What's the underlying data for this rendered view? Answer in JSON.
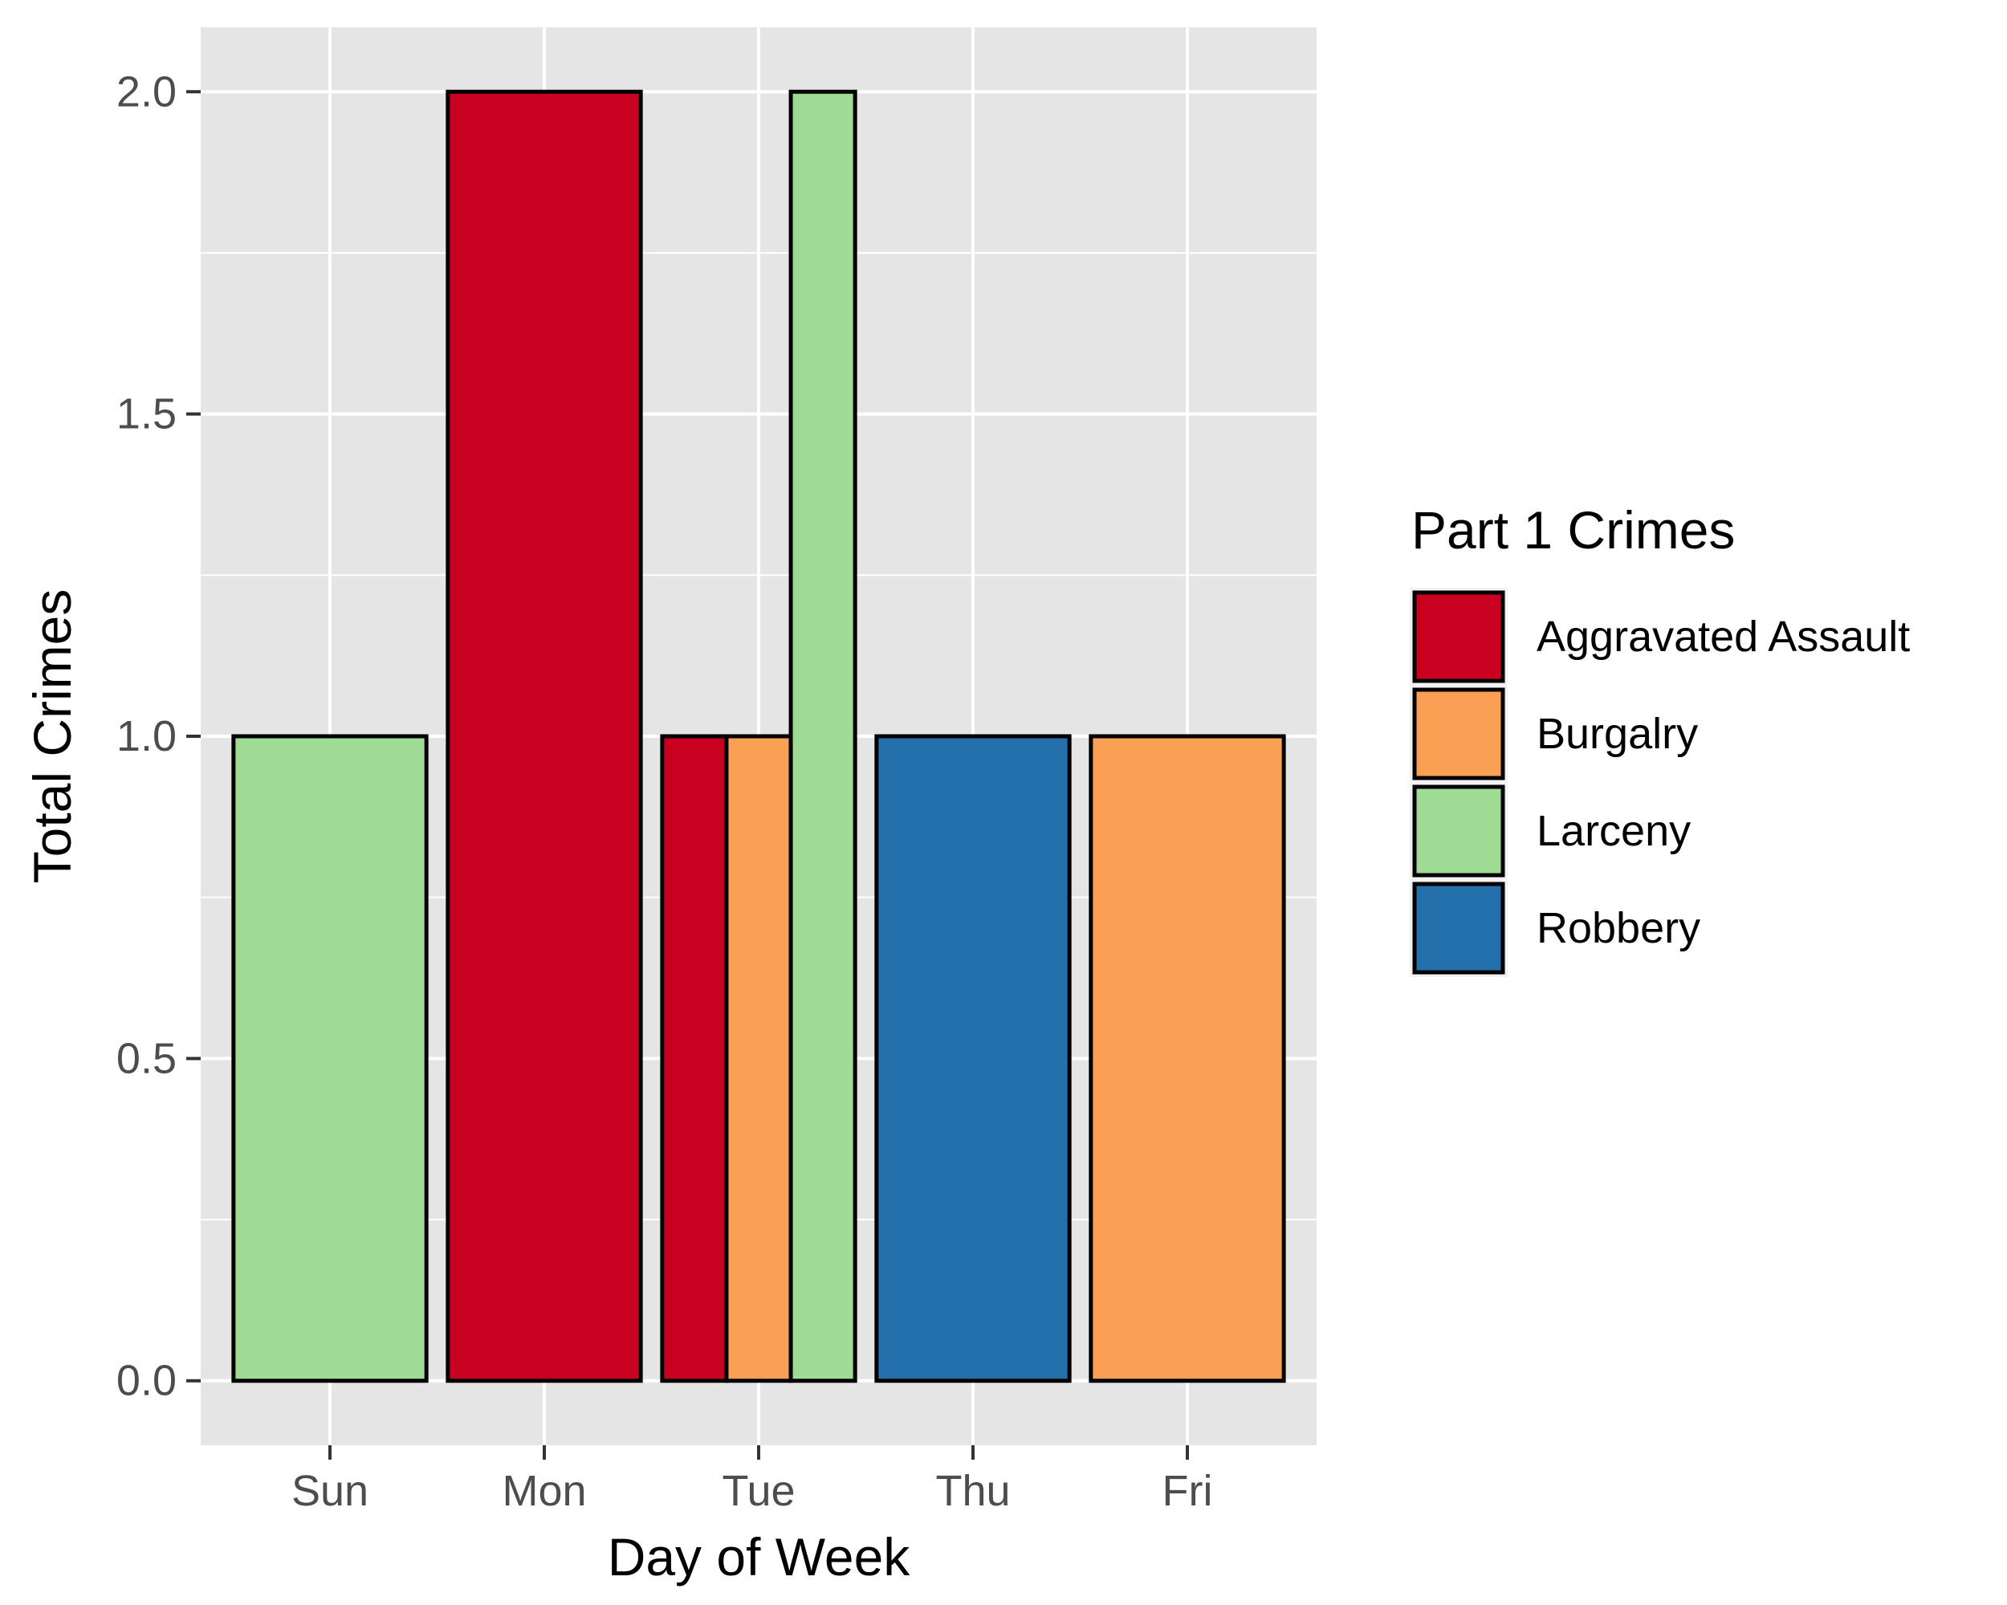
{
  "chart_data": {
    "type": "bar",
    "position": "dodge",
    "categories": [
      "Sun",
      "Mon",
      "Tue",
      "Thu",
      "Fri"
    ],
    "series": [
      {
        "name": "Aggravated Assault",
        "color": "#CA0020",
        "values": [
          null,
          2,
          1,
          null,
          null
        ]
      },
      {
        "name": "Burgalry",
        "color": "#FAA054",
        "values": [
          null,
          null,
          1,
          null,
          1
        ]
      },
      {
        "name": "Larceny",
        "color": "#A0DB95",
        "values": [
          1,
          null,
          2,
          null,
          null
        ]
      },
      {
        "name": "Robbery",
        "color": "#2470AC",
        "values": [
          null,
          null,
          null,
          1,
          null
        ]
      }
    ],
    "xlabel": "Day of Week",
    "ylabel": "Total Crimes",
    "ylim": [
      -0.1,
      2.1
    ],
    "yticks": [
      0.0,
      0.5,
      1.0,
      1.5,
      2.0
    ],
    "ytick_labels": [
      "0.0",
      "0.5",
      "1.0",
      "1.5",
      "2.0"
    ],
    "legend": {
      "title": "Part 1 Crimes",
      "placement": "right"
    },
    "grid": true,
    "panel_background": "#E5E5E5",
    "gridline_color": "#FFFFFF",
    "bar_outline_color": "#000000"
  }
}
